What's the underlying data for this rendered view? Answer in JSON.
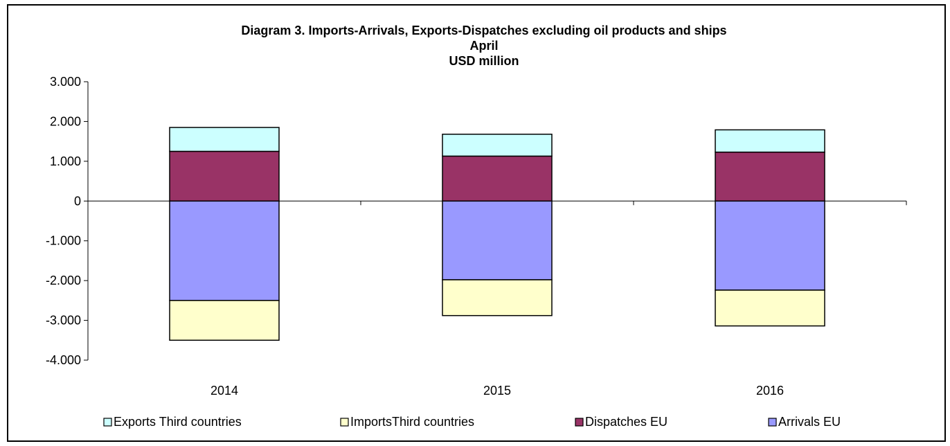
{
  "chart_data": {
    "type": "bar",
    "stacked": true,
    "title": "Diagram 3.  Imports-Arrivals, Exports-Dispatches excluding oil products and ships",
    "subtitle_lines": [
      "April",
      "USD million"
    ],
    "categories": [
      "2014",
      "2015",
      "2016"
    ],
    "ylim": [
      -4000,
      3000
    ],
    "yticks": [
      3000,
      2000,
      1000,
      0,
      -1000,
      -2000,
      -3000,
      -4000
    ],
    "ytick_labels": [
      "3.000",
      "2.000",
      "1.000",
      "0",
      "-1.000",
      "-2.000",
      "-3.000",
      "-4.000"
    ],
    "legend_position": "bottom",
    "series": [
      {
        "name": "Exports Third countries",
        "color": "#ccffff",
        "values": [
          600,
          550,
          560
        ]
      },
      {
        "name": "ImportsThird countries",
        "color": "#ffffcc",
        "values": [
          -1000,
          -900,
          -900
        ]
      },
      {
        "name": "Dispatches EU",
        "color": "#993366",
        "values": [
          1250,
          1130,
          1230
        ]
      },
      {
        "name": "Arrivals EU",
        "color": "#9999ff",
        "values": [
          -2500,
          -1980,
          -2240
        ]
      }
    ]
  }
}
